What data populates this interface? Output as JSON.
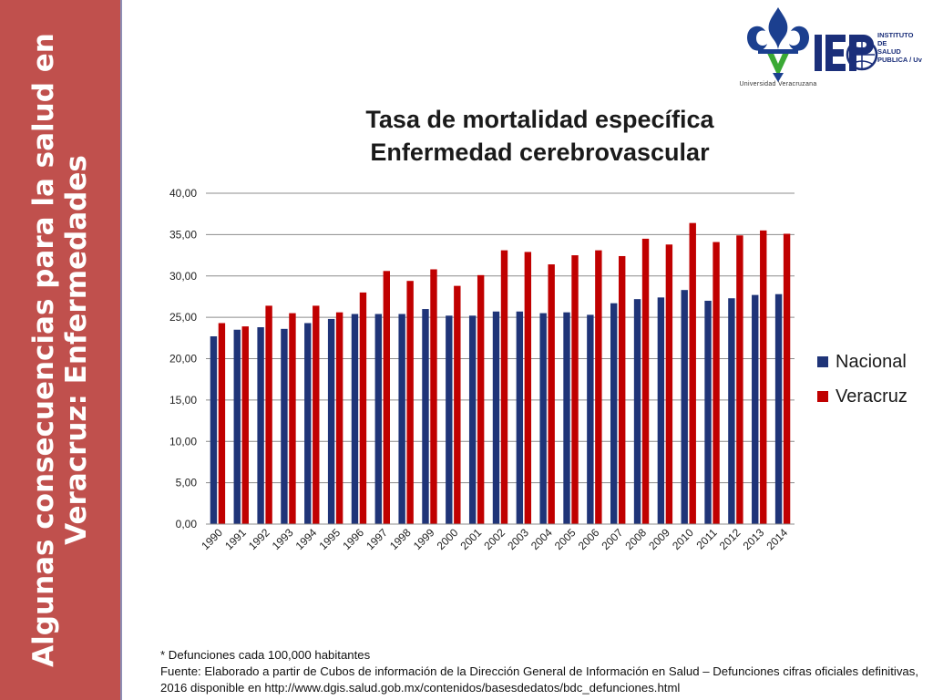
{
  "sidebar": {
    "title_line1": "Algunas consecuencias para la salud en",
    "title_line2": "Veracruz: Enfermedades"
  },
  "logos": {
    "uv_caption": "Universidad Veracruzana",
    "isp_lines": [
      "INSTITUTO",
      "DE",
      "SALUD",
      "PUBLICA / Uv"
    ]
  },
  "chart_data": {
    "type": "bar",
    "title_line1": "Tasa de mortalidad específica",
    "title_line2": "Enfermedad cerebrovascular",
    "categories": [
      "1990",
      "1991",
      "1992",
      "1993",
      "1994",
      "1995",
      "1996",
      "1997",
      "1998",
      "1999",
      "2000",
      "2001",
      "2002",
      "2003",
      "2004",
      "2005",
      "2006",
      "2007",
      "2008",
      "2009",
      "2010",
      "2011",
      "2012",
      "2013",
      "2014"
    ],
    "series": [
      {
        "name": "Nacional",
        "color": "#1f3478",
        "values": [
          22.7,
          23.5,
          23.8,
          23.6,
          24.3,
          24.8,
          25.4,
          25.4,
          25.4,
          26.0,
          25.2,
          25.2,
          25.7,
          25.7,
          25.5,
          25.6,
          25.3,
          26.7,
          27.2,
          27.4,
          28.3,
          27.0,
          27.3,
          27.7,
          27.8
        ]
      },
      {
        "name": "Veracruz",
        "color": "#c00000",
        "values": [
          24.3,
          23.9,
          26.4,
          25.5,
          26.4,
          25.6,
          28.0,
          30.6,
          29.4,
          30.8,
          28.8,
          30.1,
          33.1,
          32.9,
          31.4,
          32.5,
          33.1,
          32.4,
          34.5,
          33.8,
          36.4,
          34.1,
          34.9,
          35.5,
          35.1
        ]
      }
    ],
    "yticks": [
      "0,00",
      "5,00",
      "10,00",
      "15,00",
      "20,00",
      "25,00",
      "30,00",
      "35,00",
      "40,00"
    ],
    "ylim": [
      0,
      40
    ],
    "grid": true,
    "legend_position": "right"
  },
  "footnote": {
    "line1": "* Defunciones cada 100,000 habitantes",
    "line2": "Fuente: Elaborado a partir de Cubos de información de la Dirección General de Información en Salud – Defunciones cifras oficiales definitivas,",
    "line3": "2016 disponible en  http://www.dgis.salud.gob.mx/contenidos/basesdedatos/bdc_defunciones.html"
  }
}
